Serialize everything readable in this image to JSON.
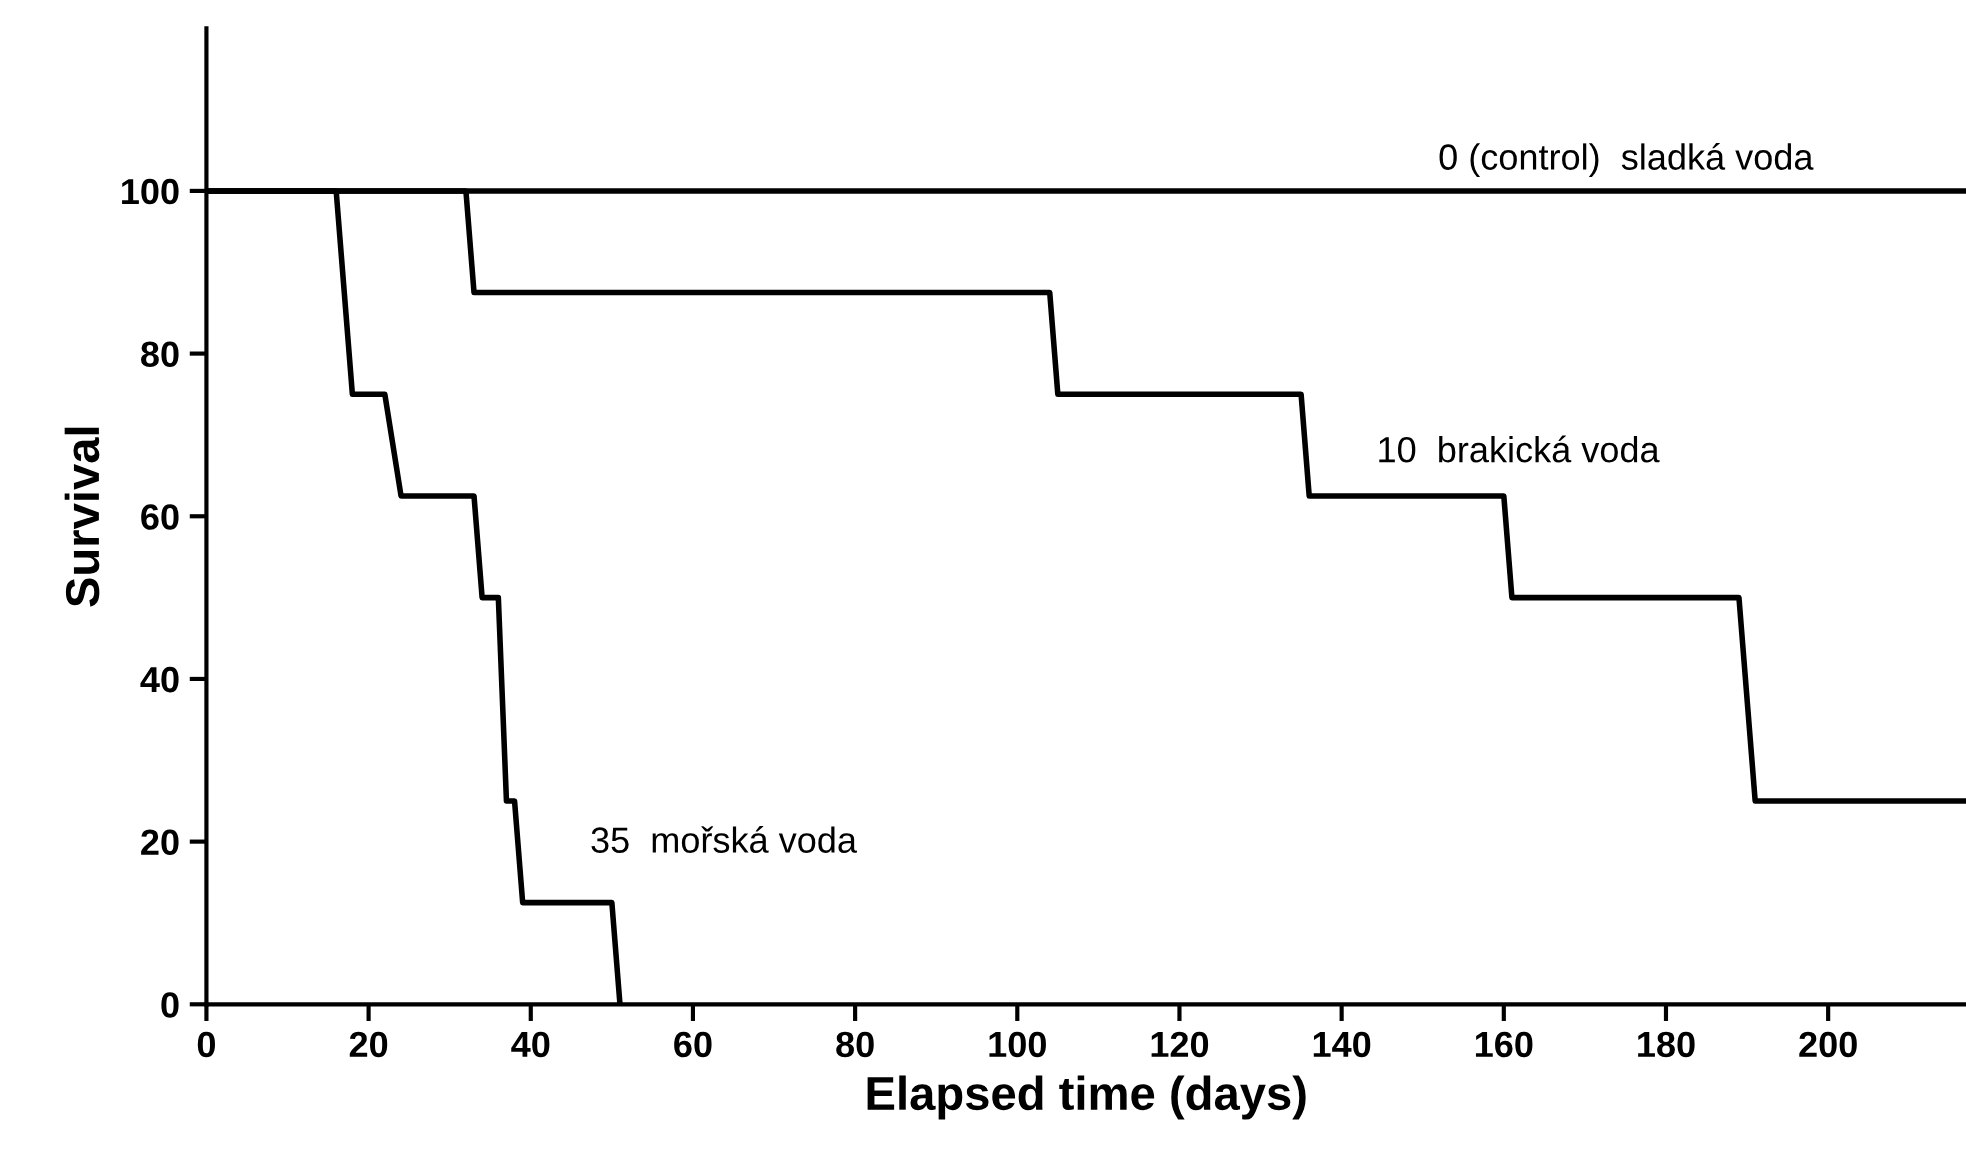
{
  "chart_data": {
    "type": "line",
    "xlabel": "Elapsed time (days)",
    "ylabel": "Survival",
    "xlim": [
      0,
      217
    ],
    "ylim": [
      0,
      120
    ],
    "xticks": [
      0,
      20,
      40,
      60,
      80,
      100,
      120,
      140,
      160,
      180,
      200
    ],
    "yticks": [
      0,
      20,
      40,
      60,
      80,
      100
    ],
    "grid": false,
    "legend": false,
    "marker": "none",
    "line_style": "solid",
    "series": [
      {
        "name": "0 (control)  sladká voda",
        "color": "#000000",
        "x": [
          0,
          217
        ],
        "values": [
          100,
          100
        ]
      },
      {
        "name": "10  brakická voda",
        "color": "#000000",
        "x": [
          0,
          32,
          33,
          104,
          105,
          135,
          136,
          160,
          161,
          189,
          191,
          217
        ],
        "values": [
          100,
          100,
          87.5,
          87.5,
          75,
          75,
          62.5,
          62.5,
          50,
          50,
          25,
          25
        ]
      },
      {
        "name": "35  mořská voda",
        "color": "#000000",
        "x": [
          0,
          16,
          18,
          22,
          24,
          33,
          34,
          36,
          37,
          38,
          39,
          50,
          51
        ],
        "values": [
          100,
          100,
          75,
          75,
          62.5,
          62.5,
          50,
          50,
          25,
          25,
          12.5,
          12.5,
          0
        ]
      }
    ]
  }
}
